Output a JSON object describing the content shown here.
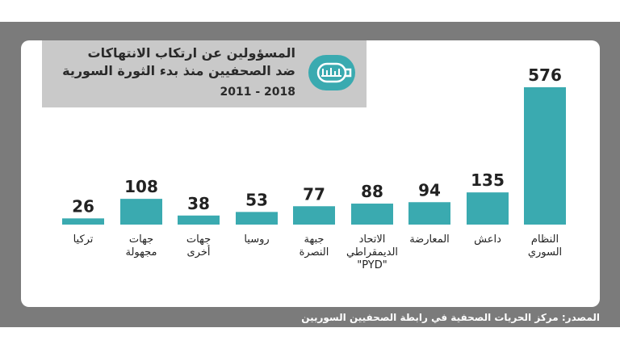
{
  "header": {
    "title_line1": "المسؤولين عن ارتكاب الانتهاكات",
    "title_line2": "ضد الصحفيين منذ بدء الثورة السورية",
    "title_line3": "2011 - 2018"
  },
  "source": "المصدر: مركز الحريات الصحفية في رابطة الصحفيين السوريين",
  "colors": {
    "bar": "#3aaab0",
    "frame": "#7b7b7b",
    "title_bg": "#c9c9c9"
  },
  "logo_icon": "press-association-logo-icon",
  "chart_data": {
    "type": "bar",
    "categories": [
      [
        "النظام",
        "السوري"
      ],
      [
        "داعش"
      ],
      [
        "المعارضة"
      ],
      [
        "الاتحاد",
        "الديمقراطي",
        "\"PYD\""
      ],
      [
        "جبهة",
        "النصرة"
      ],
      [
        "روسيا"
      ],
      [
        "جهات",
        "أخرى"
      ],
      [
        "جهات",
        "مجهولة"
      ],
      [
        "تركيا"
      ]
    ],
    "values": [
      576,
      135,
      94,
      88,
      77,
      53,
      38,
      108,
      26
    ],
    "title": "",
    "xlabel": "",
    "ylabel": "",
    "ylim": [
      0,
      600
    ],
    "grid": false
  }
}
